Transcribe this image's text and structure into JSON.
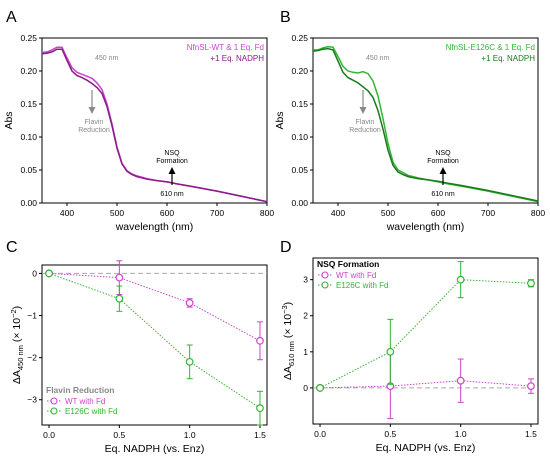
{
  "colors": {
    "wt": "#cc44cc",
    "wt_dark": "#8b1a8b",
    "e126c": "#33b533",
    "e126c_dark": "#1a7a1a",
    "annot": "#888888",
    "zero": "#aaaaaa"
  },
  "chart_data": [
    {
      "id": "A",
      "panel_label": "A",
      "type": "line",
      "xlabel": "wavelength (nm)",
      "ylabel": "Abs",
      "xlim": [
        350,
        800
      ],
      "ylim": [
        0,
        0.25
      ],
      "xticks": [
        400,
        500,
        600,
        700,
        800
      ],
      "yticks": [
        0.0,
        0.05,
        0.1,
        0.15,
        0.2,
        0.25
      ],
      "legend": [
        "NfnSL-WT & 1 Eq. Fd",
        "+1 Eq. NADPH"
      ],
      "annotations": {
        "wl450": "450 nm",
        "flavin": [
          "Flavin",
          "Reduction"
        ],
        "nsq": [
          "NSQ",
          "Formation"
        ],
        "wl610": "610 nm"
      },
      "series": [
        {
          "name": "NfnSL-WT & 1 Eq. Fd",
          "color_key": "wt",
          "x": [
            350,
            360,
            370,
            380,
            390,
            400,
            410,
            420,
            430,
            440,
            450,
            460,
            470,
            480,
            490,
            500,
            510,
            520,
            530,
            540,
            560,
            580,
            600,
            620,
            650,
            700,
            750,
            800
          ],
          "y": [
            0.228,
            0.229,
            0.232,
            0.236,
            0.236,
            0.22,
            0.205,
            0.198,
            0.195,
            0.192,
            0.189,
            0.182,
            0.172,
            0.15,
            0.12,
            0.085,
            0.06,
            0.049,
            0.044,
            0.041,
            0.037,
            0.034,
            0.032,
            0.029,
            0.025,
            0.018,
            0.01,
            0.002
          ]
        },
        {
          "name": "+1 Eq. NADPH",
          "color_key": "wt_dark",
          "x": [
            350,
            360,
            370,
            380,
            390,
            400,
            410,
            420,
            430,
            440,
            450,
            460,
            470,
            480,
            490,
            500,
            510,
            520,
            530,
            540,
            560,
            580,
            600,
            620,
            650,
            700,
            750,
            800
          ],
          "y": [
            0.226,
            0.227,
            0.229,
            0.233,
            0.233,
            0.216,
            0.2,
            0.193,
            0.19,
            0.186,
            0.181,
            0.175,
            0.166,
            0.146,
            0.117,
            0.083,
            0.059,
            0.048,
            0.043,
            0.04,
            0.036,
            0.034,
            0.032,
            0.029,
            0.025,
            0.018,
            0.01,
            0.002
          ]
        }
      ]
    },
    {
      "id": "B",
      "panel_label": "B",
      "type": "line",
      "xlabel": "wavelength (nm)",
      "ylabel": "Abs",
      "xlim": [
        350,
        800
      ],
      "ylim": [
        0,
        0.25
      ],
      "xticks": [
        400,
        500,
        600,
        700,
        800
      ],
      "yticks": [
        0.0,
        0.05,
        0.1,
        0.15,
        0.2,
        0.25
      ],
      "legend": [
        "NfnSL-E126C & 1 Eq. Fd",
        "+1 Eq. NADPH"
      ],
      "annotations": {
        "wl450": "450 nm",
        "flavin": [
          "Flavin",
          "Reduction"
        ],
        "nsq": [
          "NSQ",
          "Formation"
        ],
        "wl610": "610 nm"
      },
      "series": [
        {
          "name": "NfnSL-E126C & 1 Eq. Fd",
          "color_key": "e126c",
          "x": [
            350,
            360,
            370,
            380,
            390,
            400,
            410,
            420,
            430,
            440,
            450,
            460,
            470,
            480,
            490,
            500,
            510,
            520,
            530,
            540,
            560,
            580,
            600,
            620,
            650,
            700,
            750,
            800
          ],
          "y": [
            0.232,
            0.232,
            0.235,
            0.237,
            0.236,
            0.222,
            0.207,
            0.2,
            0.198,
            0.197,
            0.199,
            0.196,
            0.185,
            0.162,
            0.128,
            0.09,
            0.062,
            0.05,
            0.046,
            0.042,
            0.038,
            0.035,
            0.032,
            0.029,
            0.025,
            0.018,
            0.01,
            0.002
          ]
        },
        {
          "name": "+1 Eq. NADPH",
          "color_key": "e126c_dark",
          "x": [
            350,
            360,
            370,
            380,
            390,
            400,
            410,
            420,
            430,
            440,
            450,
            460,
            470,
            480,
            490,
            500,
            510,
            520,
            530,
            540,
            560,
            580,
            600,
            620,
            650,
            700,
            750,
            800
          ],
          "y": [
            0.23,
            0.231,
            0.233,
            0.234,
            0.232,
            0.215,
            0.198,
            0.19,
            0.186,
            0.182,
            0.176,
            0.17,
            0.16,
            0.14,
            0.112,
            0.08,
            0.057,
            0.047,
            0.043,
            0.04,
            0.037,
            0.035,
            0.033,
            0.03,
            0.026,
            0.019,
            0.011,
            0.003
          ]
        }
      ]
    },
    {
      "id": "C",
      "panel_label": "C",
      "type": "scatter",
      "xlabel": "Eq. NADPH (vs. Enz)",
      "ylabel": "ΔA",
      "ylabel_sub": "450 nm",
      "ylabel_scale": "(× 10",
      "ylabel_exp": "−2",
      "xlim": [
        -0.05,
        1.55
      ],
      "ylim": [
        -3.6,
        0.2
      ],
      "xticks": [
        0.0,
        0.5,
        1.0,
        1.5
      ],
      "yticks": [
        0,
        -1,
        -2,
        -3
      ],
      "xticklabels": [
        "0.0",
        "0.5",
        "1.0",
        "1.5"
      ],
      "yticklabels": [
        "0",
        "−1",
        "−2",
        "−3"
      ],
      "legend_title": "Flavin Reduction",
      "series": [
        {
          "name": "WT with Fd",
          "color_key": "wt",
          "x": [
            0.0,
            0.5,
            1.0,
            1.5
          ],
          "y": [
            0.0,
            -0.1,
            -0.7,
            -1.6
          ],
          "err": [
            0.0,
            0.4,
            0.1,
            0.45
          ]
        },
        {
          "name": "E126C with Fd",
          "color_key": "e126c",
          "x": [
            0.0,
            0.5,
            1.0,
            1.5
          ],
          "y": [
            0.0,
            -0.6,
            -2.1,
            -3.2
          ],
          "err": [
            0.0,
            0.3,
            0.4,
            0.4
          ]
        }
      ]
    },
    {
      "id": "D",
      "panel_label": "D",
      "type": "scatter",
      "xlabel": "Eq. NADPH (vs. Enz)",
      "ylabel": "ΔA",
      "ylabel_sub": "610 nm",
      "ylabel_scale": "(× 10",
      "ylabel_exp": "−3",
      "xlim": [
        -0.05,
        1.55
      ],
      "ylim": [
        -1.0,
        3.6
      ],
      "xticks": [
        0.0,
        0.5,
        1.0,
        1.5
      ],
      "yticks": [
        0,
        1,
        2,
        3
      ],
      "xticklabels": [
        "0.0",
        "0.5",
        "1.0",
        "1.5"
      ],
      "yticklabels": [
        "0",
        "1",
        "2",
        "3"
      ],
      "legend_title": "NSQ Formation",
      "series": [
        {
          "name": "WT with Fd",
          "color_key": "wt",
          "x": [
            0.0,
            0.5,
            1.0,
            1.5
          ],
          "y": [
            0.0,
            0.05,
            0.2,
            0.05
          ],
          "err": [
            0.0,
            0.9,
            0.6,
            0.2
          ]
        },
        {
          "name": "E126C with Fd",
          "color_key": "e126c",
          "x": [
            0.0,
            0.5,
            1.0,
            1.5
          ],
          "y": [
            0.0,
            1.0,
            3.0,
            2.9
          ],
          "err": [
            0.0,
            0.9,
            0.5,
            0.1
          ]
        }
      ]
    }
  ]
}
